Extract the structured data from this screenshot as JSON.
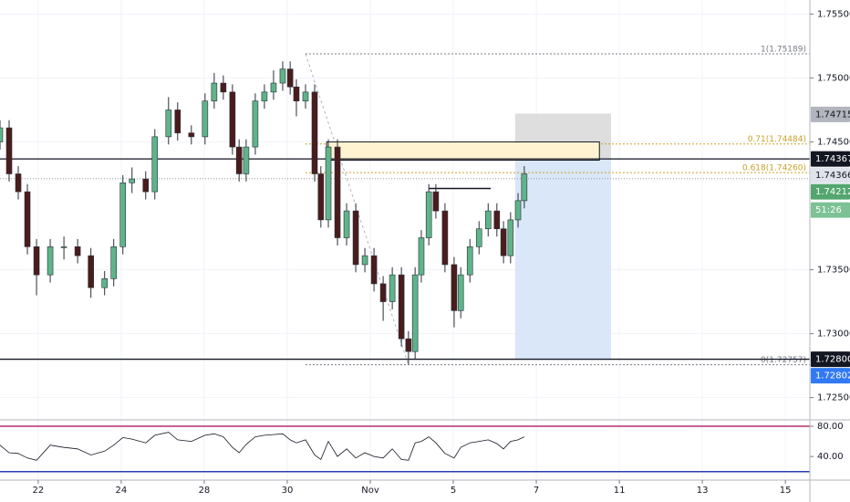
{
  "chart_data": {
    "type": "candlestick",
    "xlim": [
      -0.92,
      18.59
    ],
    "ylim": [
      1.7234,
      1.7561
    ],
    "grid": true,
    "xticks": [
      {
        "value": 0,
        "label": "22"
      },
      {
        "value": 2,
        "label": "24"
      },
      {
        "value": 4,
        "label": "28"
      },
      {
        "value": 6,
        "label": "30"
      },
      {
        "value": 8,
        "label": "Nov"
      },
      {
        "value": 10,
        "label": "5"
      },
      {
        "value": 12,
        "label": "7"
      },
      {
        "value": 14,
        "label": "11"
      },
      {
        "value": 16,
        "label": "13"
      },
      {
        "value": 18,
        "label": "15"
      }
    ],
    "yticks": [
      {
        "value": 1.755,
        "label": "1.75500"
      },
      {
        "value": 1.75,
        "label": "1.75000"
      },
      {
        "value": 1.745,
        "label": "1.74500"
      },
      {
        "value": 1.735,
        "label": "1.73500"
      },
      {
        "value": 1.73,
        "label": "1.73000"
      },
      {
        "value": 1.725,
        "label": "1.72500"
      }
    ],
    "up_color": "#5fb48a",
    "down_color": "#4a1c1c",
    "candles": {
      "x": [
        -0.92,
        -0.7,
        -0.48,
        -0.26,
        -0.04,
        0.29,
        0.62,
        0.95,
        1.27,
        1.6,
        1.82,
        2.04,
        2.26,
        2.59,
        2.81,
        3.14,
        3.36,
        3.69,
        4.02,
        4.24,
        4.46,
        4.68,
        4.84,
        5.01,
        5.23,
        5.45,
        5.67,
        5.89,
        6.07,
        6.22,
        6.44,
        6.66,
        6.81,
        6.99,
        7.21,
        7.43,
        7.65,
        7.87,
        8.09,
        8.31,
        8.53,
        8.75,
        8.92,
        9.08,
        9.23,
        9.41,
        9.58,
        9.8,
        10.02,
        10.18,
        10.4,
        10.62,
        10.84,
        11.05,
        11.21,
        11.38,
        11.56,
        11.71
      ],
      "open": [
        1.745,
        1.7461,
        1.7425,
        1.7411,
        1.7368,
        1.7346,
        1.7368,
        1.7368,
        1.7361,
        1.7336,
        1.7343,
        1.7368,
        1.7418,
        1.7421,
        1.7411,
        1.7454,
        1.7475,
        1.7457,
        1.7454,
        1.7482,
        1.7496,
        1.7489,
        1.7446,
        1.7425,
        1.7446,
        1.7482,
        1.7489,
        1.7496,
        1.7507,
        1.7493,
        1.7482,
        1.7489,
        1.7425,
        1.7389,
        1.7446,
        1.7375,
        1.7396,
        1.7354,
        1.7361,
        1.7339,
        1.7325,
        1.7346,
        1.7296,
        1.7286,
        1.7346,
        1.7375,
        1.7411,
        1.7396,
        1.7354,
        1.7318,
        1.7346,
        1.7368,
        1.7382,
        1.7396,
        1.7382,
        1.7361,
        1.7389,
        1.7404
      ],
      "high": [
        1.7467,
        1.7467,
        1.7431,
        1.7417,
        1.7374,
        1.7374,
        1.7376,
        1.7374,
        1.7367,
        1.7349,
        1.7374,
        1.7424,
        1.743,
        1.7427,
        1.746,
        1.7485,
        1.7481,
        1.7463,
        1.7488,
        1.7504,
        1.7502,
        1.7495,
        1.7452,
        1.7452,
        1.7488,
        1.7495,
        1.7506,
        1.7513,
        1.7513,
        1.7499,
        1.7495,
        1.7495,
        1.7431,
        1.7452,
        1.7452,
        1.7402,
        1.7402,
        1.7367,
        1.7367,
        1.7345,
        1.7352,
        1.7352,
        1.7302,
        1.7352,
        1.7381,
        1.7417,
        1.7417,
        1.7402,
        1.736,
        1.7352,
        1.7374,
        1.7388,
        1.7402,
        1.7402,
        1.7388,
        1.7395,
        1.741,
        1.7431
      ],
      "low": [
        1.7444,
        1.7419,
        1.7405,
        1.7362,
        1.733,
        1.734,
        1.7358,
        1.7355,
        1.7328,
        1.733,
        1.7337,
        1.7362,
        1.741,
        1.7405,
        1.7405,
        1.7448,
        1.7451,
        1.7448,
        1.7448,
        1.7476,
        1.7483,
        1.744,
        1.7419,
        1.7419,
        1.744,
        1.7476,
        1.7483,
        1.749,
        1.7487,
        1.747,
        1.7476,
        1.7419,
        1.7383,
        1.7383,
        1.7369,
        1.7369,
        1.7348,
        1.7348,
        1.7333,
        1.731,
        1.7319,
        1.729,
        1.7276,
        1.728,
        1.734,
        1.7369,
        1.739,
        1.7348,
        1.7305,
        1.7312,
        1.734,
        1.7362,
        1.7376,
        1.7376,
        1.7355,
        1.7355,
        1.7383,
        1.7398
      ],
      "close": [
        1.7461,
        1.7425,
        1.7411,
        1.7368,
        1.7346,
        1.7368,
        1.7368,
        1.7361,
        1.7336,
        1.7343,
        1.7368,
        1.7418,
        1.7421,
        1.7411,
        1.7454,
        1.7475,
        1.7457,
        1.7454,
        1.7482,
        1.7496,
        1.7489,
        1.7446,
        1.7425,
        1.7446,
        1.7482,
        1.7489,
        1.7496,
        1.7507,
        1.7493,
        1.7482,
        1.7489,
        1.7425,
        1.7389,
        1.7446,
        1.7375,
        1.7396,
        1.7354,
        1.7361,
        1.7339,
        1.7325,
        1.7346,
        1.7296,
        1.7286,
        1.7346,
        1.7375,
        1.7411,
        1.7396,
        1.7354,
        1.7318,
        1.7346,
        1.7368,
        1.7382,
        1.7396,
        1.7382,
        1.7361,
        1.7389,
        1.7404,
        1.7425
      ]
    },
    "price_tags": [
      {
        "value": 1.74715,
        "label": "1.74715",
        "bg": "#b2b5be",
        "fg": "#131722"
      },
      {
        "value": 1.74367,
        "label": "1.74367",
        "bg": "#131722",
        "fg": "#ffffff",
        "line": "solid"
      },
      {
        "value": 1.74366,
        "label": "1.74366",
        "bg": "#e0e3eb",
        "fg": "#131722"
      },
      {
        "value": 1.74212,
        "label": "1.74212",
        "bg": "#53a66f",
        "fg": "#ffffff",
        "line": "dotted"
      },
      {
        "label": "51:26",
        "bg": "#7cc294",
        "fg": "#ffffff"
      },
      {
        "value": 1.728,
        "label": "1.72800",
        "bg": "#131722",
        "fg": "#ffffff",
        "line": "solid"
      },
      {
        "value": 1.72802,
        "label": "1.72802",
        "bg": "#3179f5",
        "fg": "#ffffff"
      }
    ],
    "fib": {
      "start": {
        "x": 6.44,
        "price": 1.75189
      },
      "end": {
        "x": 8.92,
        "price": 1.72757
      },
      "levels": [
        {
          "price": 1.75189,
          "label": "1(1.75189)",
          "color": "#787b86"
        },
        {
          "price": 1.74484,
          "label": "0.71(1.74484)",
          "color": "#c9a227"
        },
        {
          "price": 1.7426,
          "label": "0.618(1.74260)",
          "color": "#c9a227"
        },
        {
          "price": 1.72757,
          "label": "0(1.72757)",
          "color": "#787b86"
        }
      ]
    },
    "zone": {
      "x0": 6.95,
      "x1": 13.52,
      "top": 1.745,
      "bottom": 1.74357,
      "color": "#fff3d1",
      "border": "#131722"
    },
    "position": {
      "x0": 11.49,
      "x1": 13.8,
      "stop": 1.74721,
      "entry": 1.74367,
      "target": 1.728,
      "stop_color": "#d6d6d6",
      "target_color": "#d6e4f7"
    },
    "neckline": {
      "x0": 9.41,
      "x1": 10.9,
      "price": 1.74136
    },
    "rsi": {
      "ylim": [
        10,
        86
      ],
      "yticks": [
        {
          "value": 80,
          "label": "80.00"
        },
        {
          "value": 40,
          "label": "40.00"
        }
      ],
      "upper": 80,
      "lower": 20,
      "upper_color": "#b0306e",
      "lower_color": "#2a3fb0",
      "color": "#131722",
      "values": [
        55,
        45,
        44,
        38,
        35,
        55,
        52,
        50,
        42,
        47,
        55,
        65,
        63,
        58,
        68,
        72,
        62,
        60,
        68,
        70,
        66,
        52,
        45,
        56,
        66,
        68,
        69,
        70,
        62,
        58,
        62,
        42,
        36,
        60,
        40,
        50,
        38,
        45,
        40,
        38,
        50,
        36,
        35,
        58,
        60,
        66,
        58,
        44,
        38,
        52,
        58,
        60,
        62,
        57,
        50,
        60,
        62,
        66
      ]
    }
  }
}
